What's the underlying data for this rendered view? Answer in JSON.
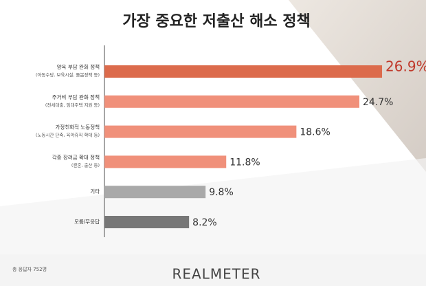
{
  "chart_data": {
    "type": "bar",
    "orientation": "horizontal",
    "title": "가장 중요한 저출산 해소 정책",
    "categories": [
      "양육 부담 완화 정책",
      "주거비 부담 완화 정책",
      "가정친화적 노동정책",
      "각종 장려금 확대 정책",
      "기타",
      "모름/무응답"
    ],
    "sublabels": [
      "(아동수당, 보육시설, 돌봄정책 등)",
      "(전세대출, 임대주택 지원 등)",
      "(노동시간 단축, 육아휴직 확대 등)",
      "(결혼, 출산 등)",
      null,
      null
    ],
    "values": [
      26.9,
      24.7,
      18.6,
      11.8,
      9.8,
      8.2
    ],
    "value_labels": [
      "26.9%",
      "24.7%",
      "18.6%",
      "11.8%",
      "9.8%",
      "8.2%"
    ],
    "colors": [
      "#dc6b4c",
      "#f0907a",
      "#f0907a",
      "#f0907a",
      "#a9a9a9",
      "#777777"
    ],
    "footnote": "총 응답자 752명",
    "brand": "REALMETER"
  }
}
